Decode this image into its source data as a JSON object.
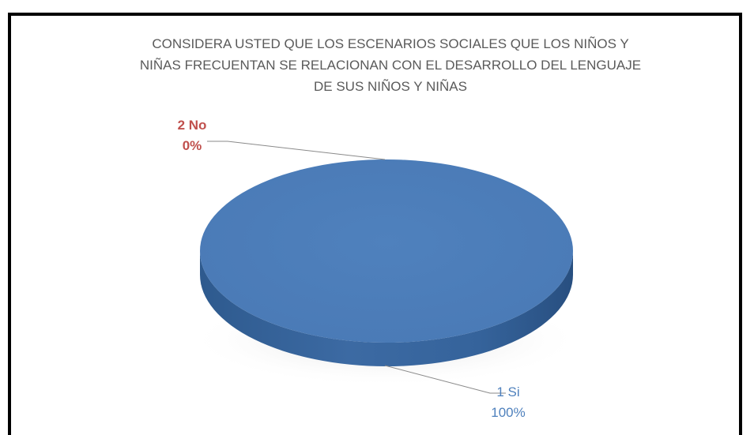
{
  "chart_data": {
    "type": "pie",
    "style": "3d",
    "title": "CONSIDERA USTED QUE LOS ESCENARIOS SOCIALES QUE LOS NIÑOS Y NIÑAS FRECUENTAN SE RELACIONAN CON EL DESARROLLO DEL LENGUAJE DE SUS NIÑOS Y NIÑAS",
    "title_lines": [
      "CONSIDERA USTED QUE LOS ESCENARIOS SOCIALES QUE LOS NIÑOS Y",
      "NIÑAS FRECUENTAN SE RELACIONAN CON EL DESARROLLO DEL LENGUAJE",
      "DE SUS NIÑOS Y NIÑAS"
    ],
    "slices": [
      {
        "label": "1 Si",
        "value": 100,
        "percent_label": "100%",
        "color": "#4f81bd"
      },
      {
        "label": "2 No",
        "value": 0,
        "percent_label": "0%",
        "color": "#c0504d"
      }
    ]
  }
}
